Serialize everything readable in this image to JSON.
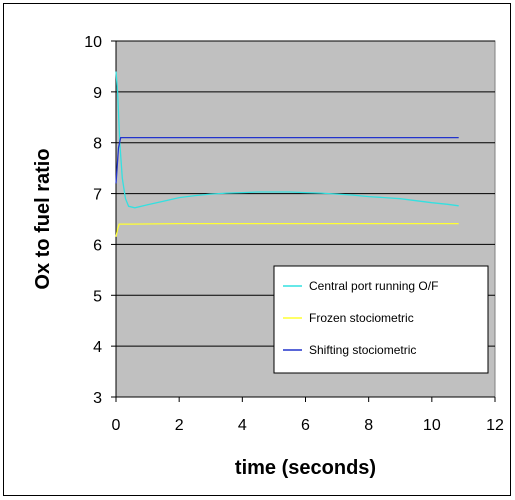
{
  "colors": {
    "plot_bg": "#c0c0c0",
    "frame": "#000000",
    "page_bg": "#ffffff"
  },
  "chart_data": {
    "type": "line",
    "title": "",
    "xlabel": "time (seconds)",
    "ylabel": "Ox to fuel ratio",
    "xlim": [
      0,
      12
    ],
    "ylim": [
      3,
      10
    ],
    "x_ticks": [
      "0",
      "2",
      "4",
      "6",
      "8",
      "10",
      "12"
    ],
    "y_ticks": [
      "3",
      "4",
      "5",
      "6",
      "7",
      "8",
      "9",
      "10"
    ],
    "grid": "horizontal",
    "legend_position": "lower-right",
    "series": [
      {
        "name": "Central port running O/F",
        "color": "#33e0e0",
        "points": [
          [
            0.0,
            9.4
          ],
          [
            0.05,
            9.0
          ],
          [
            0.12,
            8.0
          ],
          [
            0.2,
            7.3
          ],
          [
            0.3,
            6.9
          ],
          [
            0.4,
            6.75
          ],
          [
            0.6,
            6.72
          ],
          [
            1.0,
            6.78
          ],
          [
            1.5,
            6.85
          ],
          [
            2.0,
            6.92
          ],
          [
            2.5,
            6.96
          ],
          [
            3.0,
            6.99
          ],
          [
            3.5,
            7.01
          ],
          [
            4.0,
            7.02
          ],
          [
            4.5,
            7.03
          ],
          [
            5.0,
            7.03
          ],
          [
            5.5,
            7.03
          ],
          [
            6.0,
            7.02
          ],
          [
            6.5,
            7.01
          ],
          [
            7.0,
            6.99
          ],
          [
            7.5,
            6.97
          ],
          [
            8.0,
            6.94
          ],
          [
            8.5,
            6.92
          ],
          [
            9.0,
            6.9
          ],
          [
            9.5,
            6.86
          ],
          [
            10.0,
            6.82
          ],
          [
            10.5,
            6.79
          ],
          [
            10.85,
            6.76
          ]
        ]
      },
      {
        "name": "Frozen stociometric",
        "color": "#ffff33",
        "points": [
          [
            0.0,
            6.15
          ],
          [
            0.05,
            6.3
          ],
          [
            0.1,
            6.4
          ],
          [
            0.5,
            6.4
          ],
          [
            2.0,
            6.41
          ],
          [
            5.0,
            6.41
          ],
          [
            8.0,
            6.41
          ],
          [
            10.85,
            6.41
          ]
        ]
      },
      {
        "name": "Shifting stociometric",
        "color": "#2233cc",
        "points": [
          [
            0.0,
            7.2
          ],
          [
            0.08,
            7.9
          ],
          [
            0.15,
            8.1
          ],
          [
            1.0,
            8.1
          ],
          [
            4.0,
            8.1
          ],
          [
            8.0,
            8.1
          ],
          [
            10.85,
            8.1
          ]
        ]
      }
    ]
  }
}
